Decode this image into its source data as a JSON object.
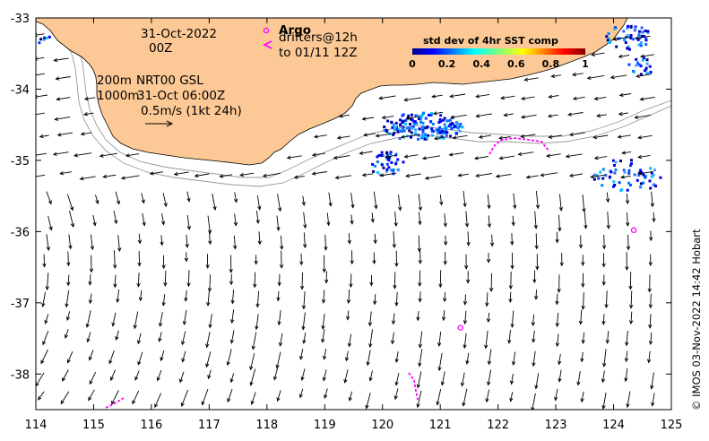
{
  "chart_data": {
    "type": "map",
    "x_ticks": [
      "114",
      "115",
      "116",
      "117",
      "118",
      "119",
      "120",
      "121",
      "122",
      "123",
      "124",
      "125"
    ],
    "y_ticks": [
      "-33",
      "-34",
      "-35",
      "-36",
      "-37",
      "-38"
    ],
    "xlim": [
      114,
      125
    ],
    "ylim": [
      -38.5,
      -33
    ],
    "annotations": {
      "date": "31-Oct-2022",
      "hour": "00Z",
      "isobath_200": "200m",
      "isobath_1000": "1000m",
      "product": "NRT00 GSL",
      "product_time": "31-Oct 06:00Z",
      "scale_label": "0.5m/s (1kt 24h)"
    },
    "legend": {
      "argo_label": "Argo",
      "drifters_label": "drifters@12h",
      "drifters_until": "to 01/11 12Z"
    },
    "colorbar": {
      "title": "std dev of 4hr SST comp",
      "ticks": [
        "0",
        "0.2",
        "0.4",
        "0.6",
        "0.8",
        "1"
      ],
      "range": [
        0,
        1
      ]
    },
    "argo_floats": [
      {
        "lon": 124.35,
        "lat": -35.98
      },
      {
        "lon": 121.35,
        "lat": -37.35
      }
    ],
    "credit": "© IMOS 03-Nov-2022 14:42 Hobart"
  },
  "colors": {
    "land": "#fcc996",
    "drifter": "#ff00ff",
    "arrow": "#000000",
    "isobath": "#999999"
  }
}
